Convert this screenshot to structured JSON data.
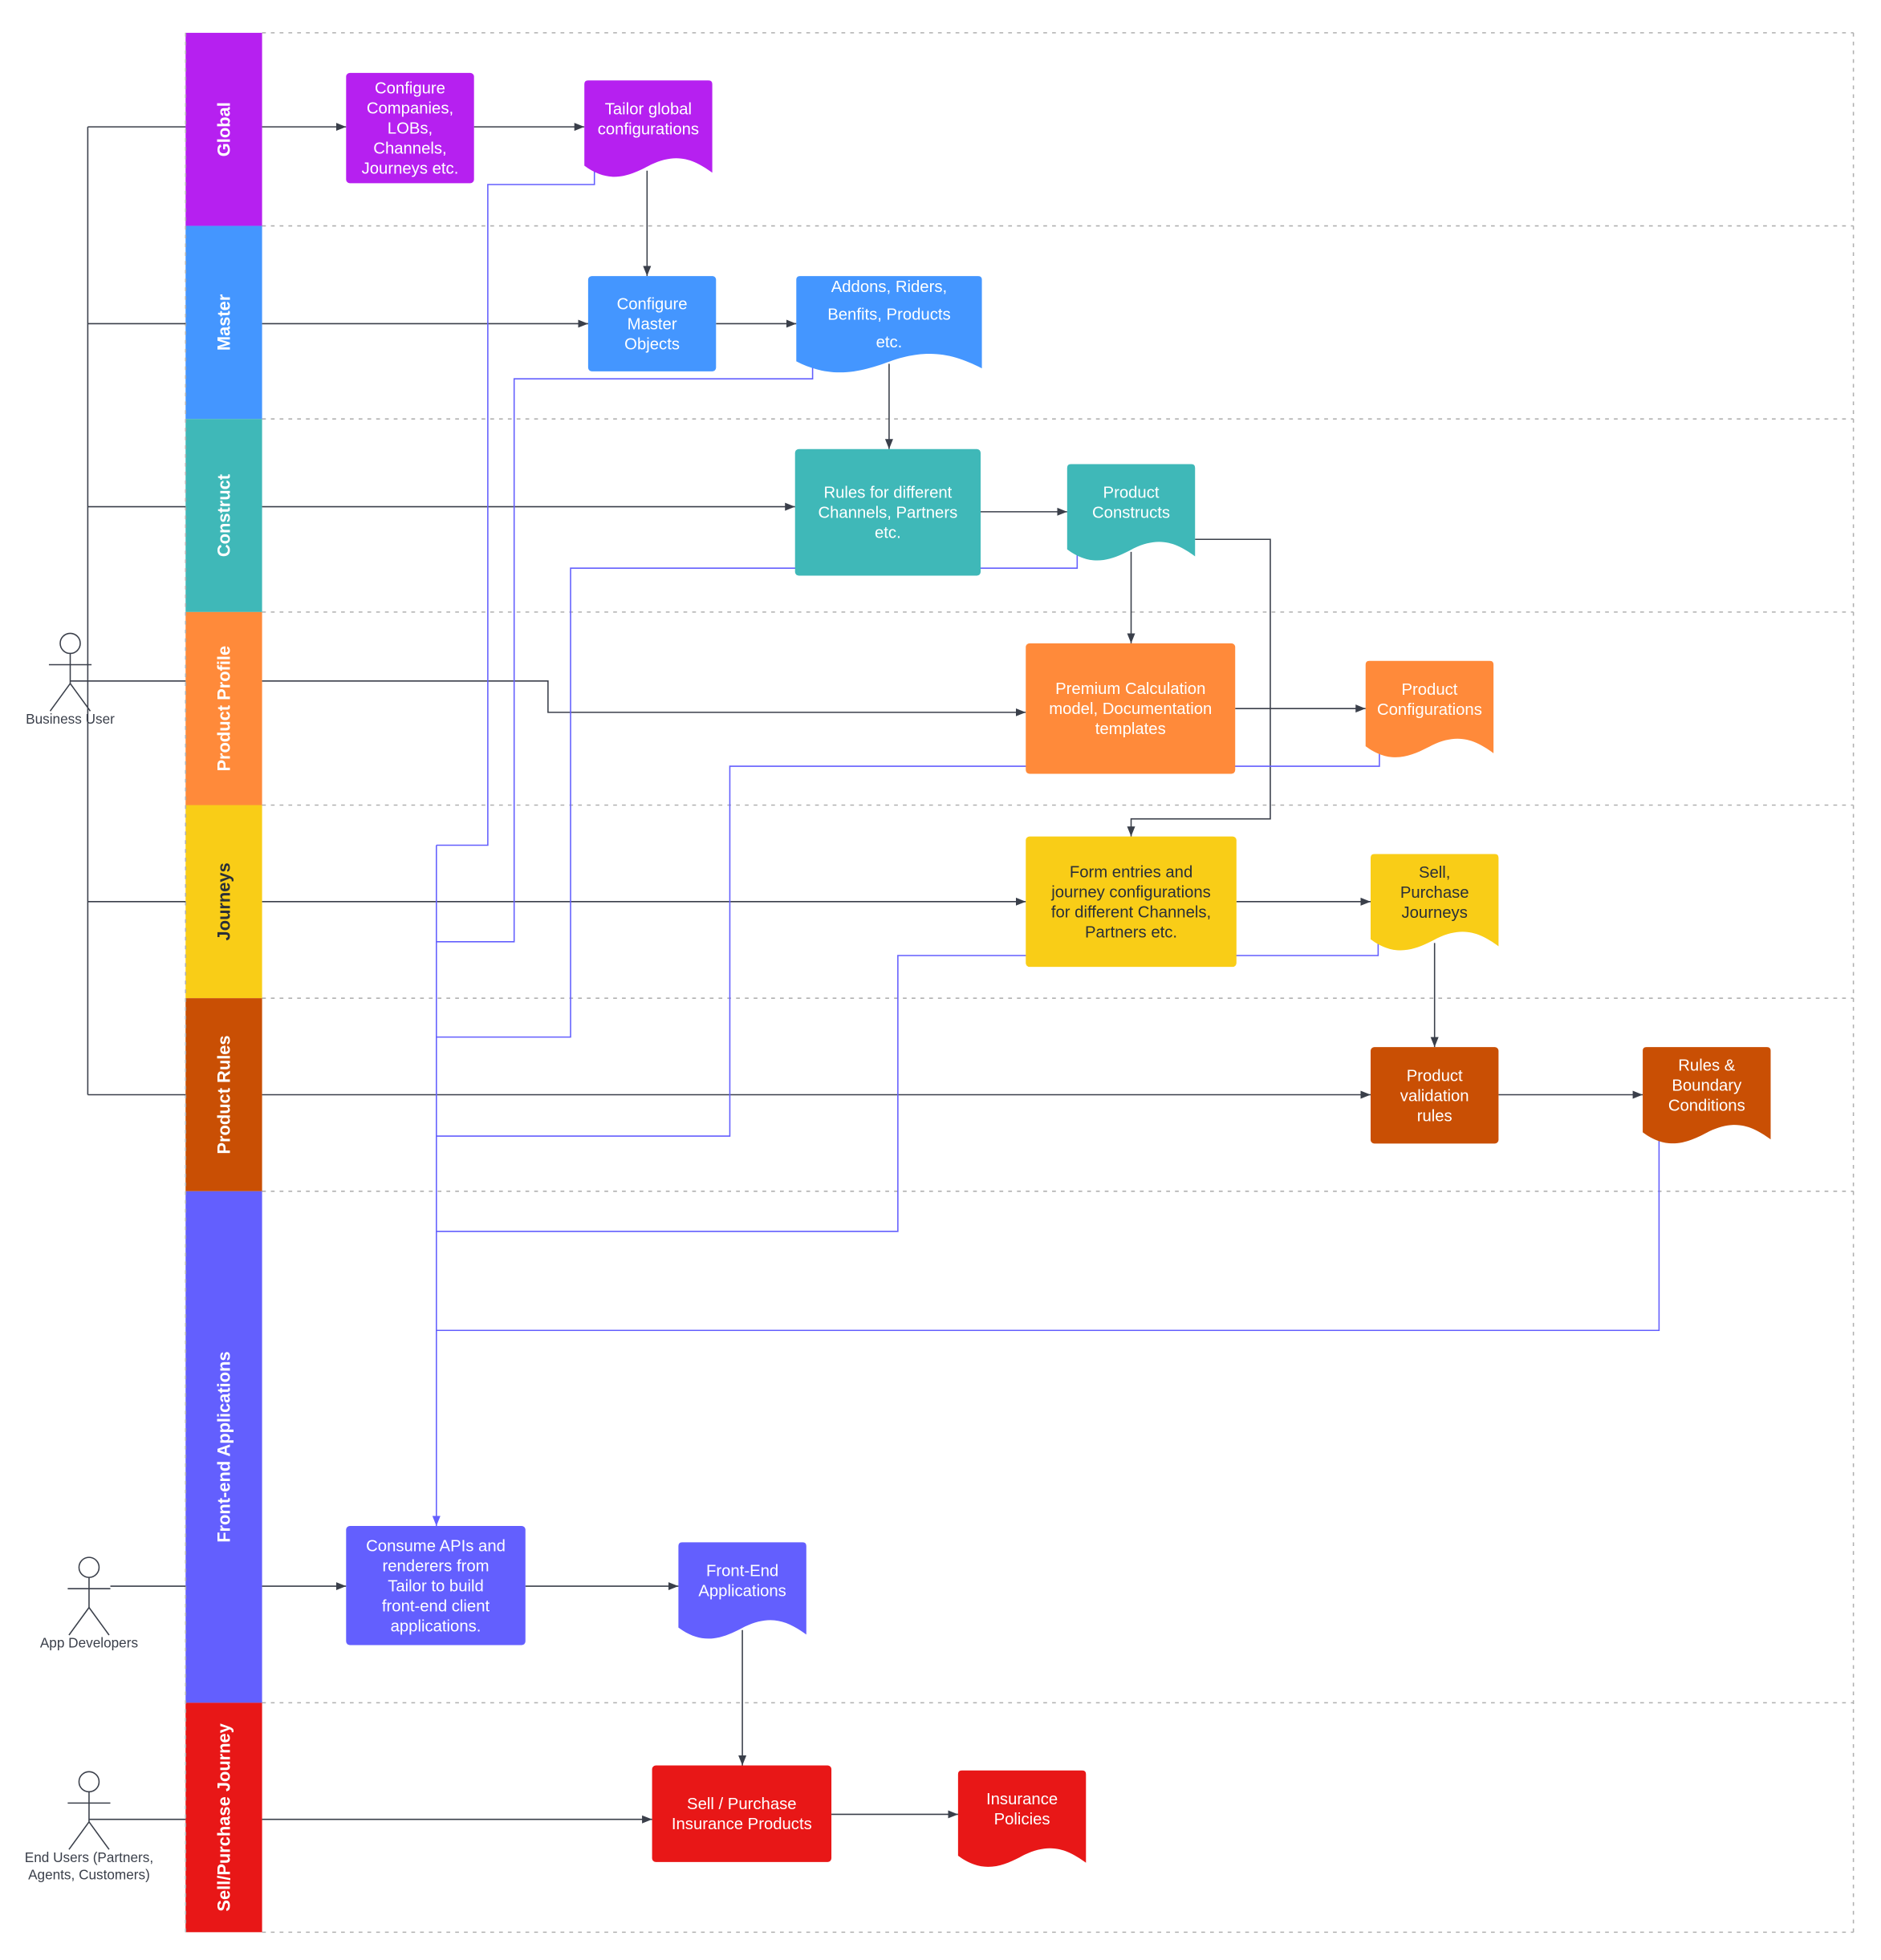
{
  "lanes": [
    {
      "id": "global",
      "label": "Global",
      "color": "#b620f0",
      "dark": false
    },
    {
      "id": "master",
      "label": "Master",
      "color": "#4496ff",
      "dark": false
    },
    {
      "id": "construct",
      "label": "Construct",
      "color": "#3fb8b8",
      "dark": false
    },
    {
      "id": "product-profile",
      "label": "Product Profile",
      "color": "#ff8a3a",
      "dark": false
    },
    {
      "id": "journeys",
      "label": "Journeys",
      "color": "#f9cd17",
      "dark": true
    },
    {
      "id": "product-rules",
      "label": "Product Rules",
      "color": "#c94f04",
      "dark": false
    },
    {
      "id": "front-end-applications",
      "label": "Front-end Applications",
      "color": "#635ffe",
      "dark": false
    },
    {
      "id": "sell-purchase-journey",
      "label": "Sell/Purchase Journey",
      "color": "#e81717",
      "dark": false
    }
  ],
  "actors": [
    {
      "id": "business-user",
      "label": [
        "Business User"
      ]
    },
    {
      "id": "app-developers",
      "label": [
        "App Developers"
      ]
    },
    {
      "id": "end-users",
      "label": [
        "End Users (Partners,",
        "Agents, Customers)"
      ]
    }
  ],
  "nodes": [
    {
      "id": "configure-companies",
      "shape": "process",
      "lane": "global",
      "lines": [
        "Configure",
        "Companies,",
        "LOBs,",
        "Channels,",
        "Journeys etc."
      ]
    },
    {
      "id": "tailor-global-configurations",
      "shape": "document",
      "lane": "global",
      "lines": [
        "Tailor global",
        "configurations"
      ]
    },
    {
      "id": "configure-master-objects",
      "shape": "process",
      "lane": "master",
      "lines": [
        "Configure",
        "Master",
        "Objects"
      ]
    },
    {
      "id": "addons-riders",
      "shape": "document",
      "lane": "master",
      "lines": [
        "Addons, Riders,",
        "Benfits, Products",
        "etc."
      ]
    },
    {
      "id": "rules-for-channels",
      "shape": "process",
      "lane": "construct",
      "lines": [
        "Rules for different",
        "Channels, Partners",
        "etc."
      ]
    },
    {
      "id": "product-constructs",
      "shape": "document",
      "lane": "construct",
      "lines": [
        "Product",
        "Constructs"
      ]
    },
    {
      "id": "premium-calculation",
      "shape": "process",
      "lane": "product-profile",
      "lines": [
        "Premium Calculation",
        "model, Documentation",
        "templates"
      ]
    },
    {
      "id": "product-configurations",
      "shape": "document",
      "lane": "product-profile",
      "lines": [
        "Product",
        "Configurations"
      ]
    },
    {
      "id": "form-entries",
      "shape": "process",
      "lane": "journeys",
      "lines": [
        "Form entries and",
        "journey configurations",
        "for different Channels,",
        "Partners etc."
      ]
    },
    {
      "id": "sell-purchase-journeys",
      "shape": "document",
      "lane": "journeys",
      "lines": [
        "Sell,",
        "Purchase",
        "Journeys"
      ]
    },
    {
      "id": "product-validation-rules",
      "shape": "process",
      "lane": "product-rules",
      "lines": [
        "Product",
        "validation",
        "rules"
      ]
    },
    {
      "id": "rules-boundary-conditions",
      "shape": "document",
      "lane": "product-rules",
      "lines": [
        "Rules &",
        "Boundary",
        "Conditions"
      ]
    },
    {
      "id": "consume-apis",
      "shape": "process",
      "lane": "front-end-applications",
      "lines": [
        "Consume APIs and",
        "renderers from",
        "Tailor to build",
        "front-end client",
        "applications."
      ]
    },
    {
      "id": "front-end-applications-doc",
      "shape": "document",
      "lane": "front-end-applications",
      "lines": [
        "Front-End",
        "Applications"
      ]
    },
    {
      "id": "sell-purchase-insurance-products",
      "shape": "process",
      "lane": "sell-purchase-journey",
      "lines": [
        "Sell / Purchase",
        "Insurance Products"
      ]
    },
    {
      "id": "insurance-policies",
      "shape": "document",
      "lane": "sell-purchase-journey",
      "lines": [
        "Insurance",
        "Policies"
      ]
    }
  ],
  "colors": {
    "connector": "#3a3f4a",
    "api_connector": "#635ffe",
    "separator": "#b0b0b0"
  }
}
